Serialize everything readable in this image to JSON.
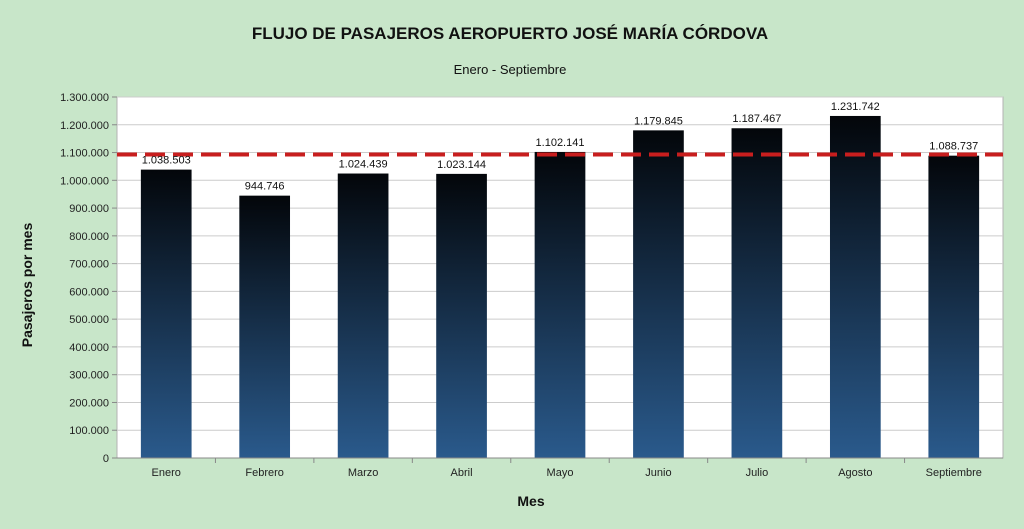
{
  "chart_data": {
    "type": "bar",
    "title": "FLUJO DE PASAJEROS AEROPUERTO JOSÉ MARÍA CÓRDOVA",
    "subtitle": "Enero - Septiembre",
    "xlabel": "Mes",
    "ylabel": "Pasajeros por mes",
    "categories": [
      "Enero",
      "Febrero",
      "Marzo",
      "Abril",
      "Mayo",
      "Junio",
      "Julio",
      "Agosto",
      "Septiembre"
    ],
    "values": [
      1038503,
      944746,
      1024439,
      1023144,
      1102141,
      1179845,
      1187467,
      1231742,
      1088737
    ],
    "value_labels": [
      "1.038.503",
      "944.746",
      "1.024.439",
      "1.023.144",
      "1.102.141",
      "1.179.845",
      "1.187.467",
      "1.231.742",
      "1.088.737"
    ],
    "ylim": [
      0,
      1300000
    ],
    "yticks": [
      0,
      100000,
      200000,
      300000,
      400000,
      500000,
      600000,
      700000,
      800000,
      900000,
      1000000,
      1100000,
      1200000,
      1300000
    ],
    "ytick_labels": [
      "0",
      "100.000",
      "200.000",
      "300.000",
      "400.000",
      "500.000",
      "600.000",
      "700.000",
      "800.000",
      "900.000",
      "1.000.000",
      "1.100.000",
      "1.200.000",
      "1.300.000"
    ],
    "reference_line": {
      "value": 1093000,
      "color": "#c81e1e",
      "style": "dashed"
    },
    "grid": true,
    "legend": "none",
    "colors": {
      "background": "#c8e6c9",
      "plot_background": "#ffffff",
      "bar_top": "#03060a",
      "bar_bottom": "#2a5a8c",
      "grid": "#cccccc"
    }
  }
}
